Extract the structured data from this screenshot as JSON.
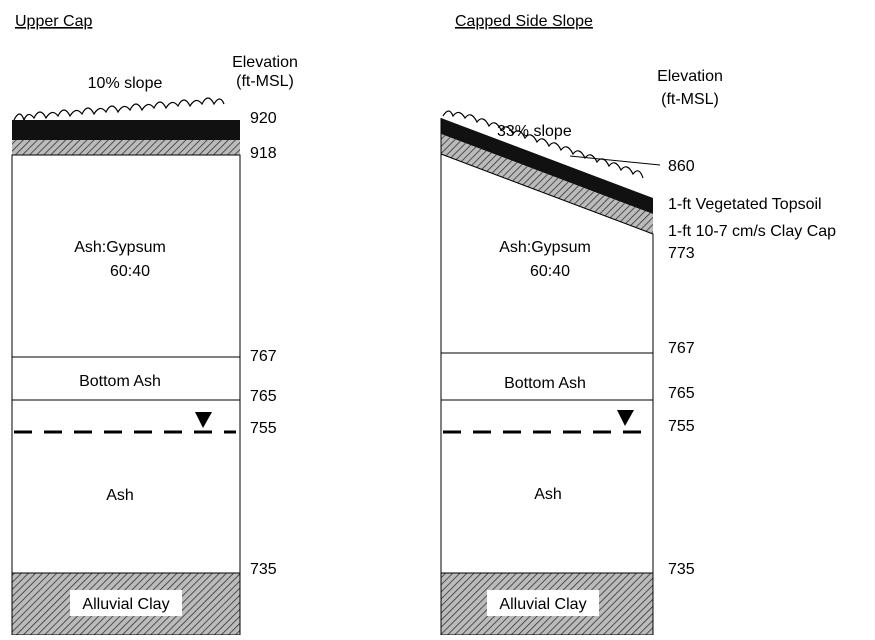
{
  "panels": [
    {
      "title": "Upper Cap",
      "elevation_header": [
        "Elevation",
        "(ft-MSL)"
      ],
      "slope": "10% slope",
      "layers": {
        "fill": [
          "Ash:Gypsum",
          "60:40"
        ],
        "bottom_ash": "Bottom Ash",
        "ash": "Ash",
        "clay": "Alluvial Clay"
      },
      "elevations": [
        920,
        918,
        767,
        765,
        755,
        735
      ]
    },
    {
      "title": "Capped Side Slope",
      "elevation_header": [
        "Elevation",
        "(ft-MSL)"
      ],
      "slope": "33% slope",
      "notes": [
        "1-ft  Vegetated Topsoil",
        "1-ft 10-7 cm/s Clay Cap"
      ],
      "layers": {
        "fill": [
          "Ash:Gypsum",
          "60:40"
        ],
        "bottom_ash": "Bottom Ash",
        "ash": "Ash",
        "clay": "Alluvial Clay"
      },
      "elevations": [
        860,
        773,
        767,
        765,
        755,
        735
      ]
    }
  ]
}
